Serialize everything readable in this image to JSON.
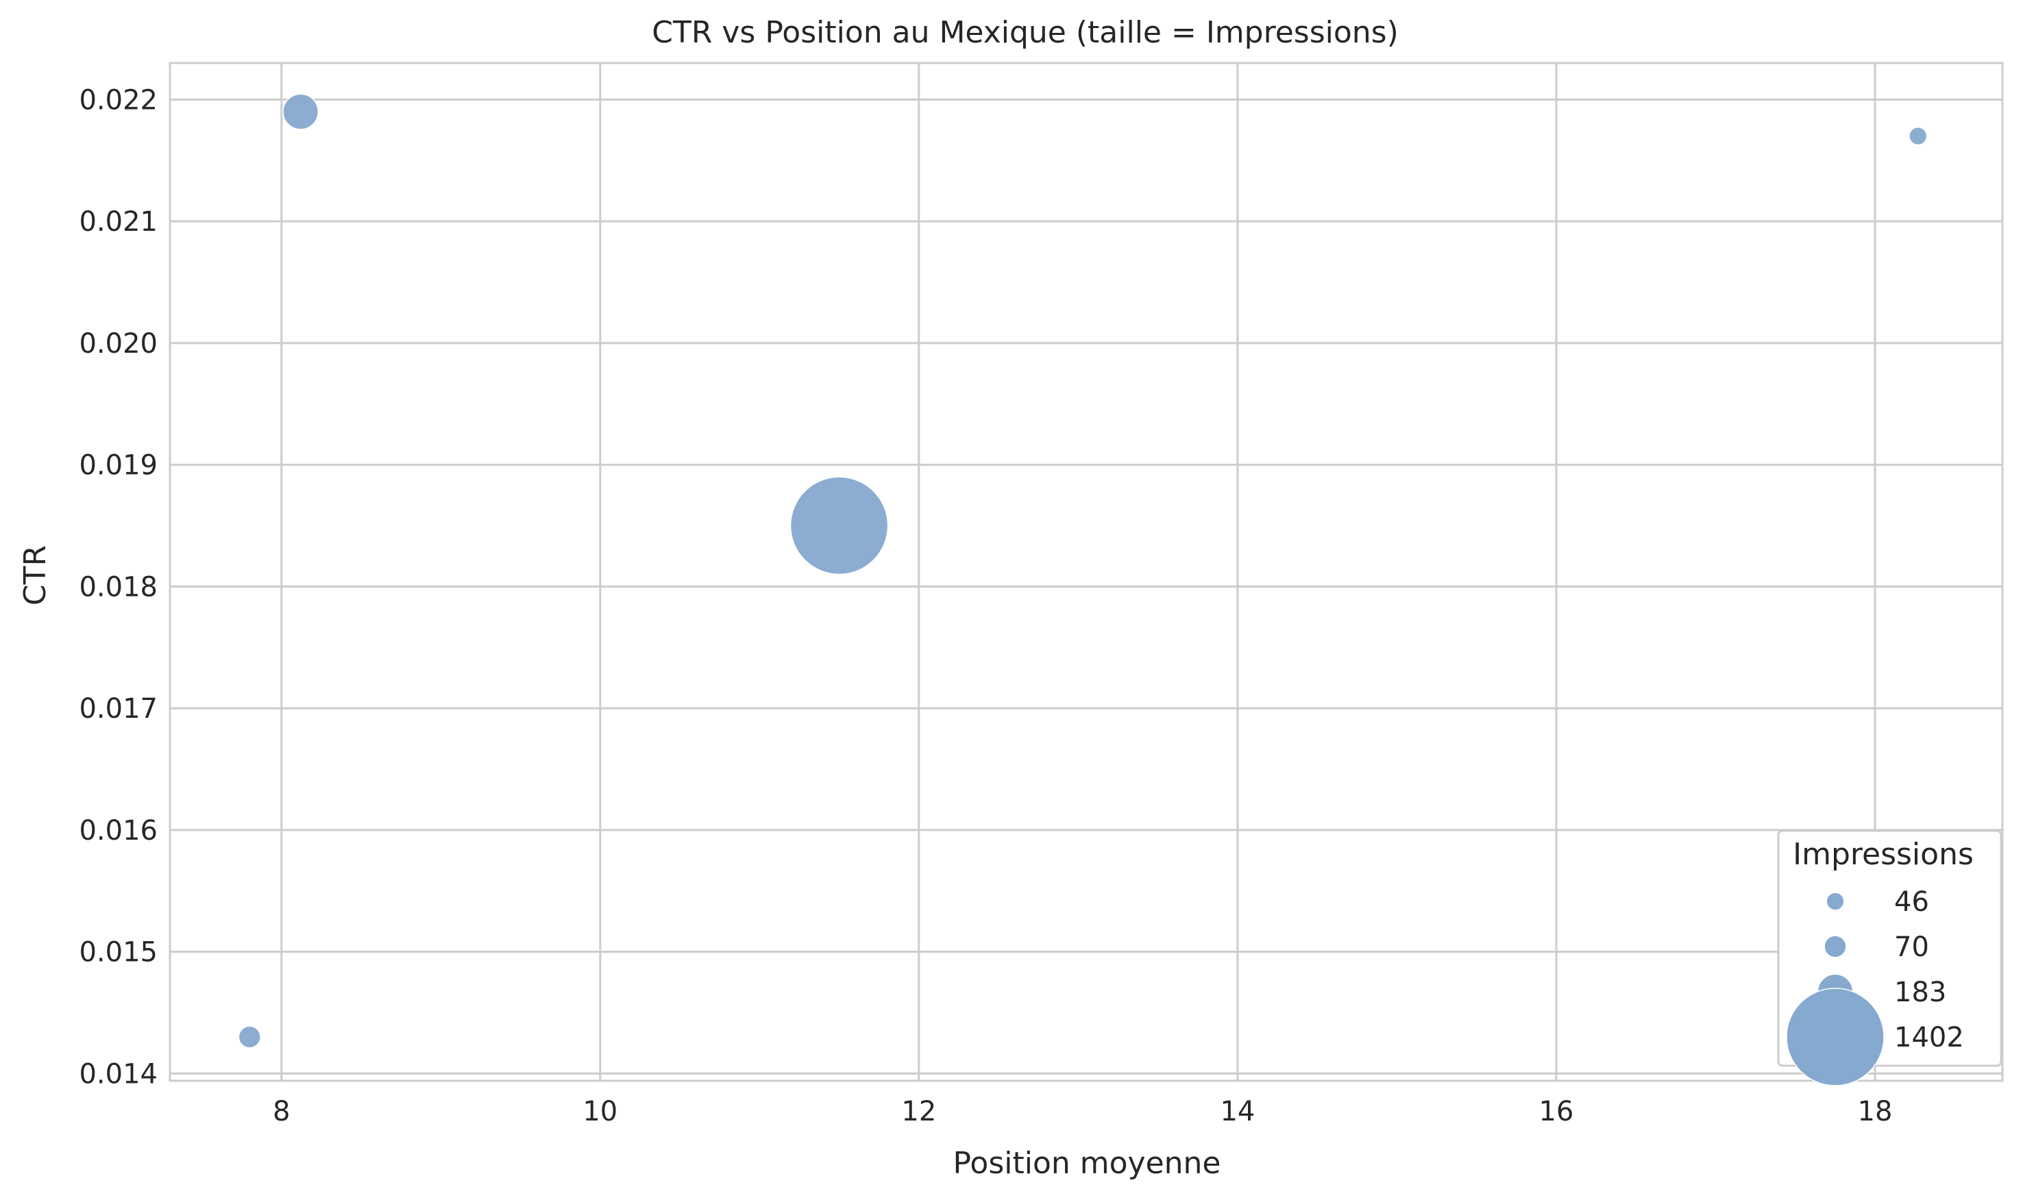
{
  "chart_data": {
    "type": "scatter",
    "title": "CTR vs Position au Mexique (taille = Impressions)",
    "xlabel": "Position moyenne",
    "ylabel": "CTR",
    "xlim": [
      7.3,
      18.8
    ],
    "ylim": [
      0.01394,
      0.0223
    ],
    "x_ticks": [
      8,
      10,
      12,
      14,
      16,
      18
    ],
    "x_tick_labels": [
      "8",
      "10",
      "12",
      "14",
      "16",
      "18"
    ],
    "y_ticks": [
      0.014,
      0.015,
      0.016,
      0.017,
      0.018,
      0.019,
      0.02,
      0.021,
      0.022
    ],
    "y_tick_labels": [
      "0.014",
      "0.015",
      "0.016",
      "0.017",
      "0.018",
      "0.019",
      "0.020",
      "0.021",
      "0.022"
    ],
    "grid": true,
    "marker_color": "#86a9cf",
    "points": [
      {
        "x": 7.8,
        "y": 0.0143,
        "impressions": 70
      },
      {
        "x": 8.12,
        "y": 0.0219,
        "impressions": 183
      },
      {
        "x": 11.5,
        "y": 0.0185,
        "impressions": 1402
      },
      {
        "x": 18.27,
        "y": 0.0217,
        "impressions": 46
      }
    ],
    "legend": {
      "title": "Impressions",
      "placement": "lower-right",
      "entries": [
        {
          "label": "46",
          "impressions": 46
        },
        {
          "label": "70",
          "impressions": 70
        },
        {
          "label": "183",
          "impressions": 183
        },
        {
          "label": "1402",
          "impressions": 1402
        }
      ]
    }
  }
}
